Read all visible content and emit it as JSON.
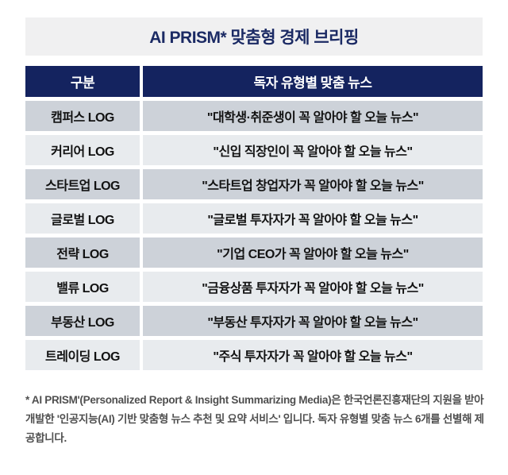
{
  "banner": {
    "title": "AI PRISM* 맞춤형 경제 브리핑"
  },
  "table": {
    "headers": {
      "category": "구분",
      "news": "독자 유형별 맞춤 뉴스"
    },
    "rows": [
      {
        "category": "캠퍼스 LOG",
        "news": "\"대학생·취준생이 꼭 알아야 할 오늘 뉴스\""
      },
      {
        "category": "커리어 LOG",
        "news": "\"신입 직장인이 꼭 알아야 할 오늘 뉴스\""
      },
      {
        "category": "스타트업 LOG",
        "news": "\"스타트업 창업자가 꼭 알아야 할 오늘 뉴스\""
      },
      {
        "category": "글로벌 LOG",
        "news": "\"글로벌 투자자가 꼭 알아야 할 오늘 뉴스\""
      },
      {
        "category": "전략 LOG",
        "news": "\"기업 CEO가 꼭 알아야 할 오늘 뉴스\""
      },
      {
        "category": "밸류 LOG",
        "news": "\"금융상품 투자자가 꼭 알아야 할 오늘 뉴스\""
      },
      {
        "category": "부동산 LOG",
        "news": "\"부동산 투자자가 꼭 알아야 할 오늘 뉴스\""
      },
      {
        "category": "트레이딩 LOG",
        "news": "\"주식 투자자가 꼭 알아야 할 오늘 뉴스\""
      }
    ]
  },
  "footnote": {
    "text": "* AI PRISM'(Personalized Report & Insight Summarizing Media)은 한국언론진흥재단의 지원을 받아 개발한 '인공지능(AI) 기반 맞춤형 뉴스 추천 및 요약 서비스' 입니다. 독자 유형별 맞춤 뉴스 6개를 선별해 제공합니다."
  },
  "colors": {
    "header_navy": "#14235f",
    "banner_bg": "#f0f0f1",
    "banner_text": "#1b2a64",
    "row_dark": "#cdd2d9",
    "row_light": "#e8ebee",
    "row_text": "#121212",
    "footnote_text": "#4f4f4f"
  }
}
